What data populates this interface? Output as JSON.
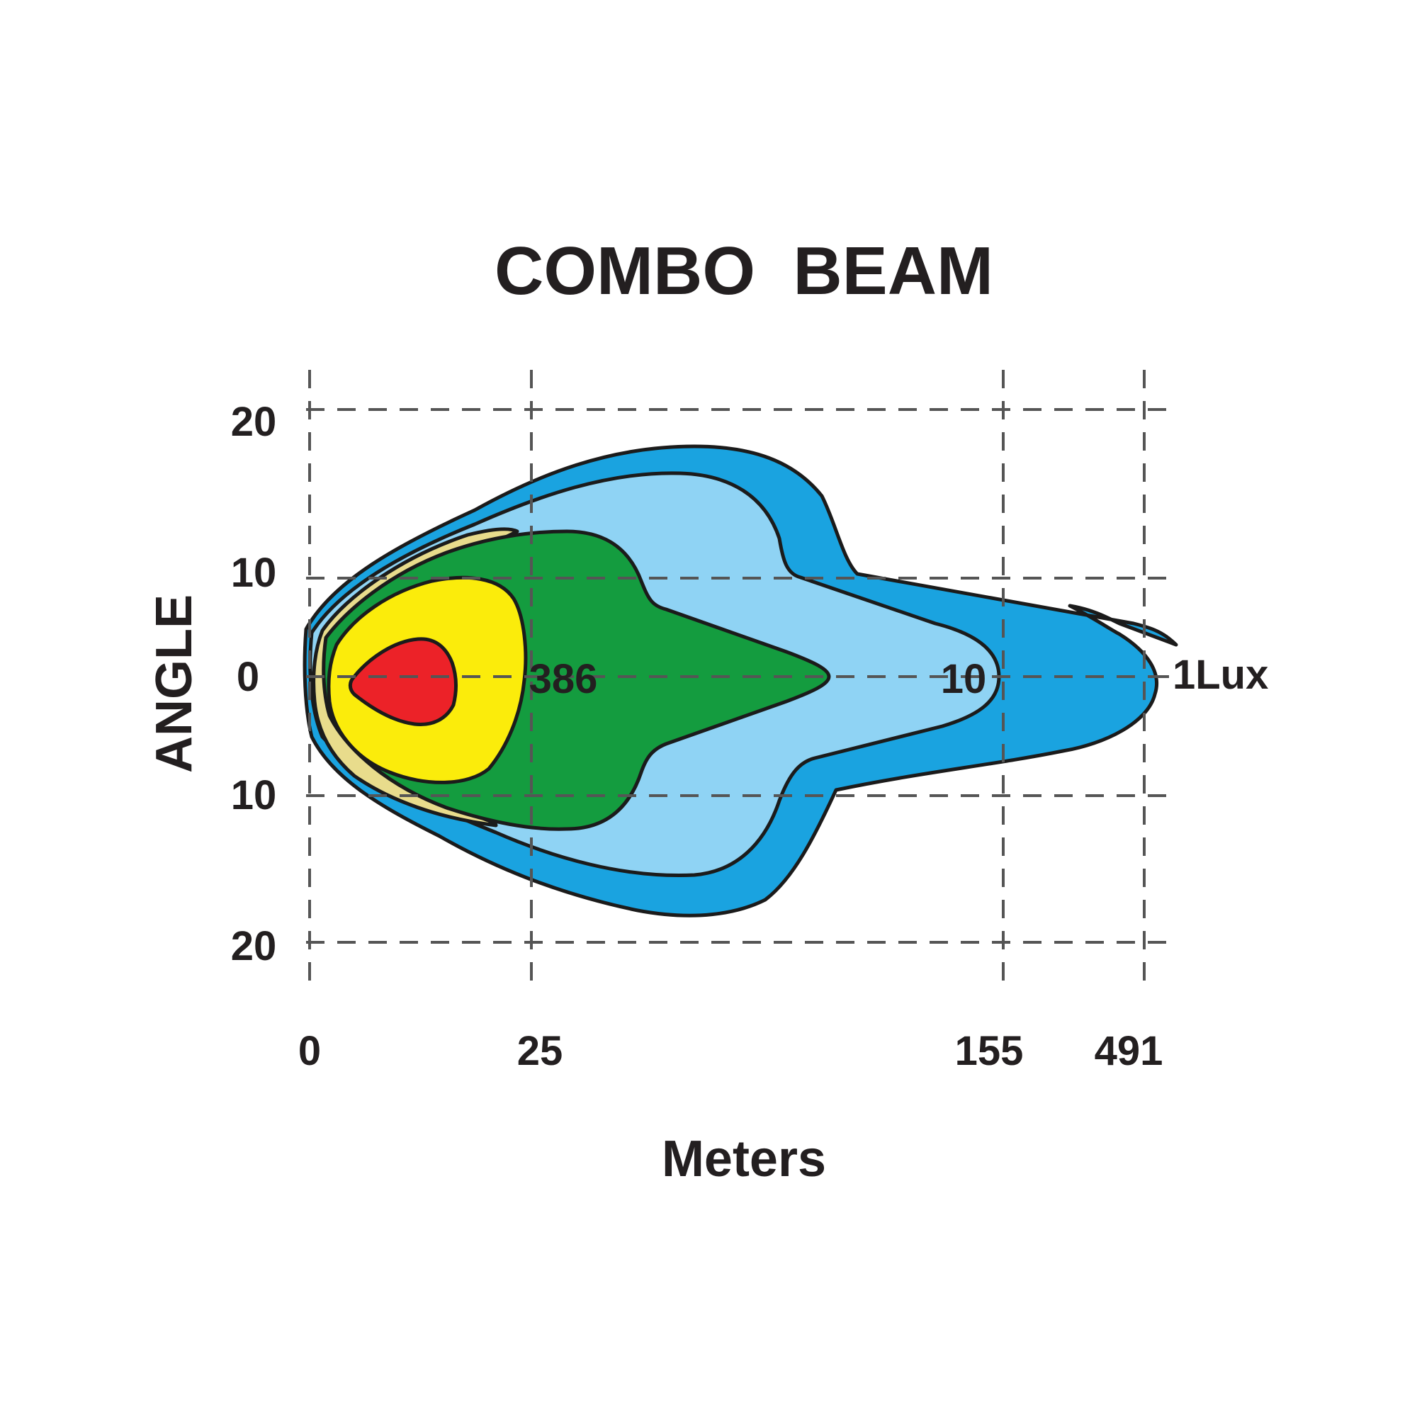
{
  "chart_data": {
    "type": "contour",
    "title": "COMBO  BEAM",
    "xlabel": "Meters",
    "ylabel": "ANGLE",
    "x_ticks": [
      "0",
      "25",
      "155",
      "491"
    ],
    "y_ticks": [
      "20",
      "10",
      "0",
      "10",
      "20"
    ],
    "grid": true,
    "zone_labels": [
      {
        "text": "386",
        "at_meters": "25"
      },
      {
        "text": "10",
        "at_meters": "155"
      },
      {
        "text": "1Lux",
        "at_meters": "491"
      }
    ],
    "zones": [
      {
        "level": "1Lux",
        "color": "#1aa3e0",
        "reach_meters": 491,
        "half_angle_deg": 17
      },
      {
        "level": "outer-light",
        "color": "#8fd3f4",
        "reach_meters": 155,
        "half_angle_deg": 15
      },
      {
        "level": "10",
        "color": "#149c3f",
        "reach_meters": 155,
        "half_angle_deg": 11
      },
      {
        "level": "386",
        "color": "#fbec0b",
        "reach_meters": 25,
        "half_angle_deg": 8
      },
      {
        "level": "peak",
        "color": "#ec2228",
        "reach_meters": 25,
        "half_angle_deg": 3
      }
    ],
    "colors": {
      "background": "#ffffff",
      "grid": "#555555",
      "text": "#231f20",
      "tan_halo": "#e8dc8c"
    }
  }
}
